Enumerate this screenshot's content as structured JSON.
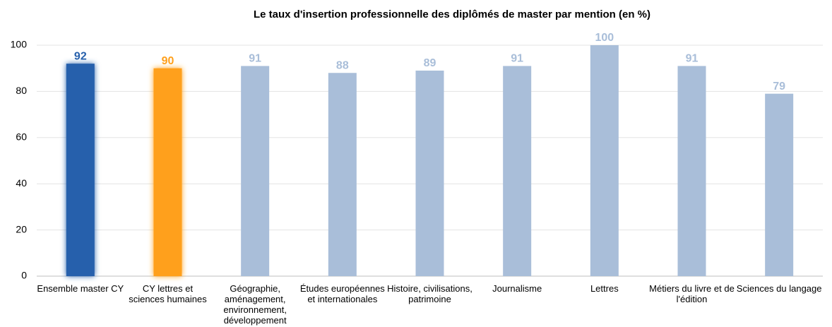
{
  "chart_data": {
    "type": "bar",
    "title": "Le taux d'insertion professionnelle des diplômés de master par mention (en %)",
    "categories": [
      "Ensemble master CY",
      "CY lettres et sciences humaines",
      "Géographie, aménagement, environnement, développement",
      "Études européennes et internationales",
      "Histoire, civilisations, patrimoine",
      "Journalisme",
      "Lettres",
      "Métiers du livre et de l'édition",
      "Sciences du langage"
    ],
    "values": [
      92,
      90,
      91,
      88,
      89,
      91,
      100,
      91,
      79
    ],
    "colors": [
      "#2660ac",
      "#ffa01c",
      "#a9bed9",
      "#a9bed9",
      "#a9bed9",
      "#a9bed9",
      "#a9bed9",
      "#a9bed9",
      "#a9bed9"
    ],
    "ylim": [
      0,
      100
    ],
    "yticks": [
      0,
      20,
      40,
      60,
      80,
      100
    ],
    "grid": true
  }
}
